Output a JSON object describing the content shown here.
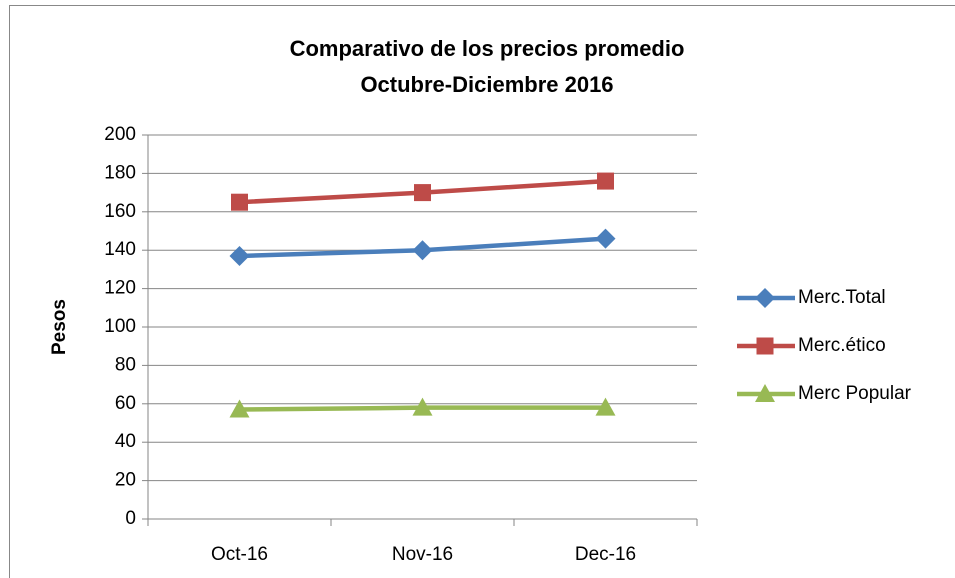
{
  "chart_data": {
    "type": "line",
    "title": [
      "Comparativo de los precios promedio",
      "Octubre-Diciembre 2016"
    ],
    "y_label": "Pesos",
    "categories": [
      "Oct-16",
      "Nov-16",
      "Dec-16"
    ],
    "series": [
      {
        "name": "Merc.Total",
        "color": "#4a7ebb",
        "marker": "diamond",
        "values": [
          137,
          140,
          146
        ]
      },
      {
        "name": "Merc.ético",
        "color": "#be4b48",
        "marker": "square",
        "values": [
          165,
          170,
          176
        ]
      },
      {
        "name": "Merc Popular",
        "color": "#98b954",
        "marker": "triangle",
        "values": [
          57,
          58,
          58
        ]
      }
    ],
    "ylim": [
      0,
      200
    ],
    "yticks": [
      0,
      20,
      40,
      60,
      80,
      100,
      120,
      140,
      160,
      180,
      200
    ],
    "grid": true,
    "legend": "right"
  }
}
